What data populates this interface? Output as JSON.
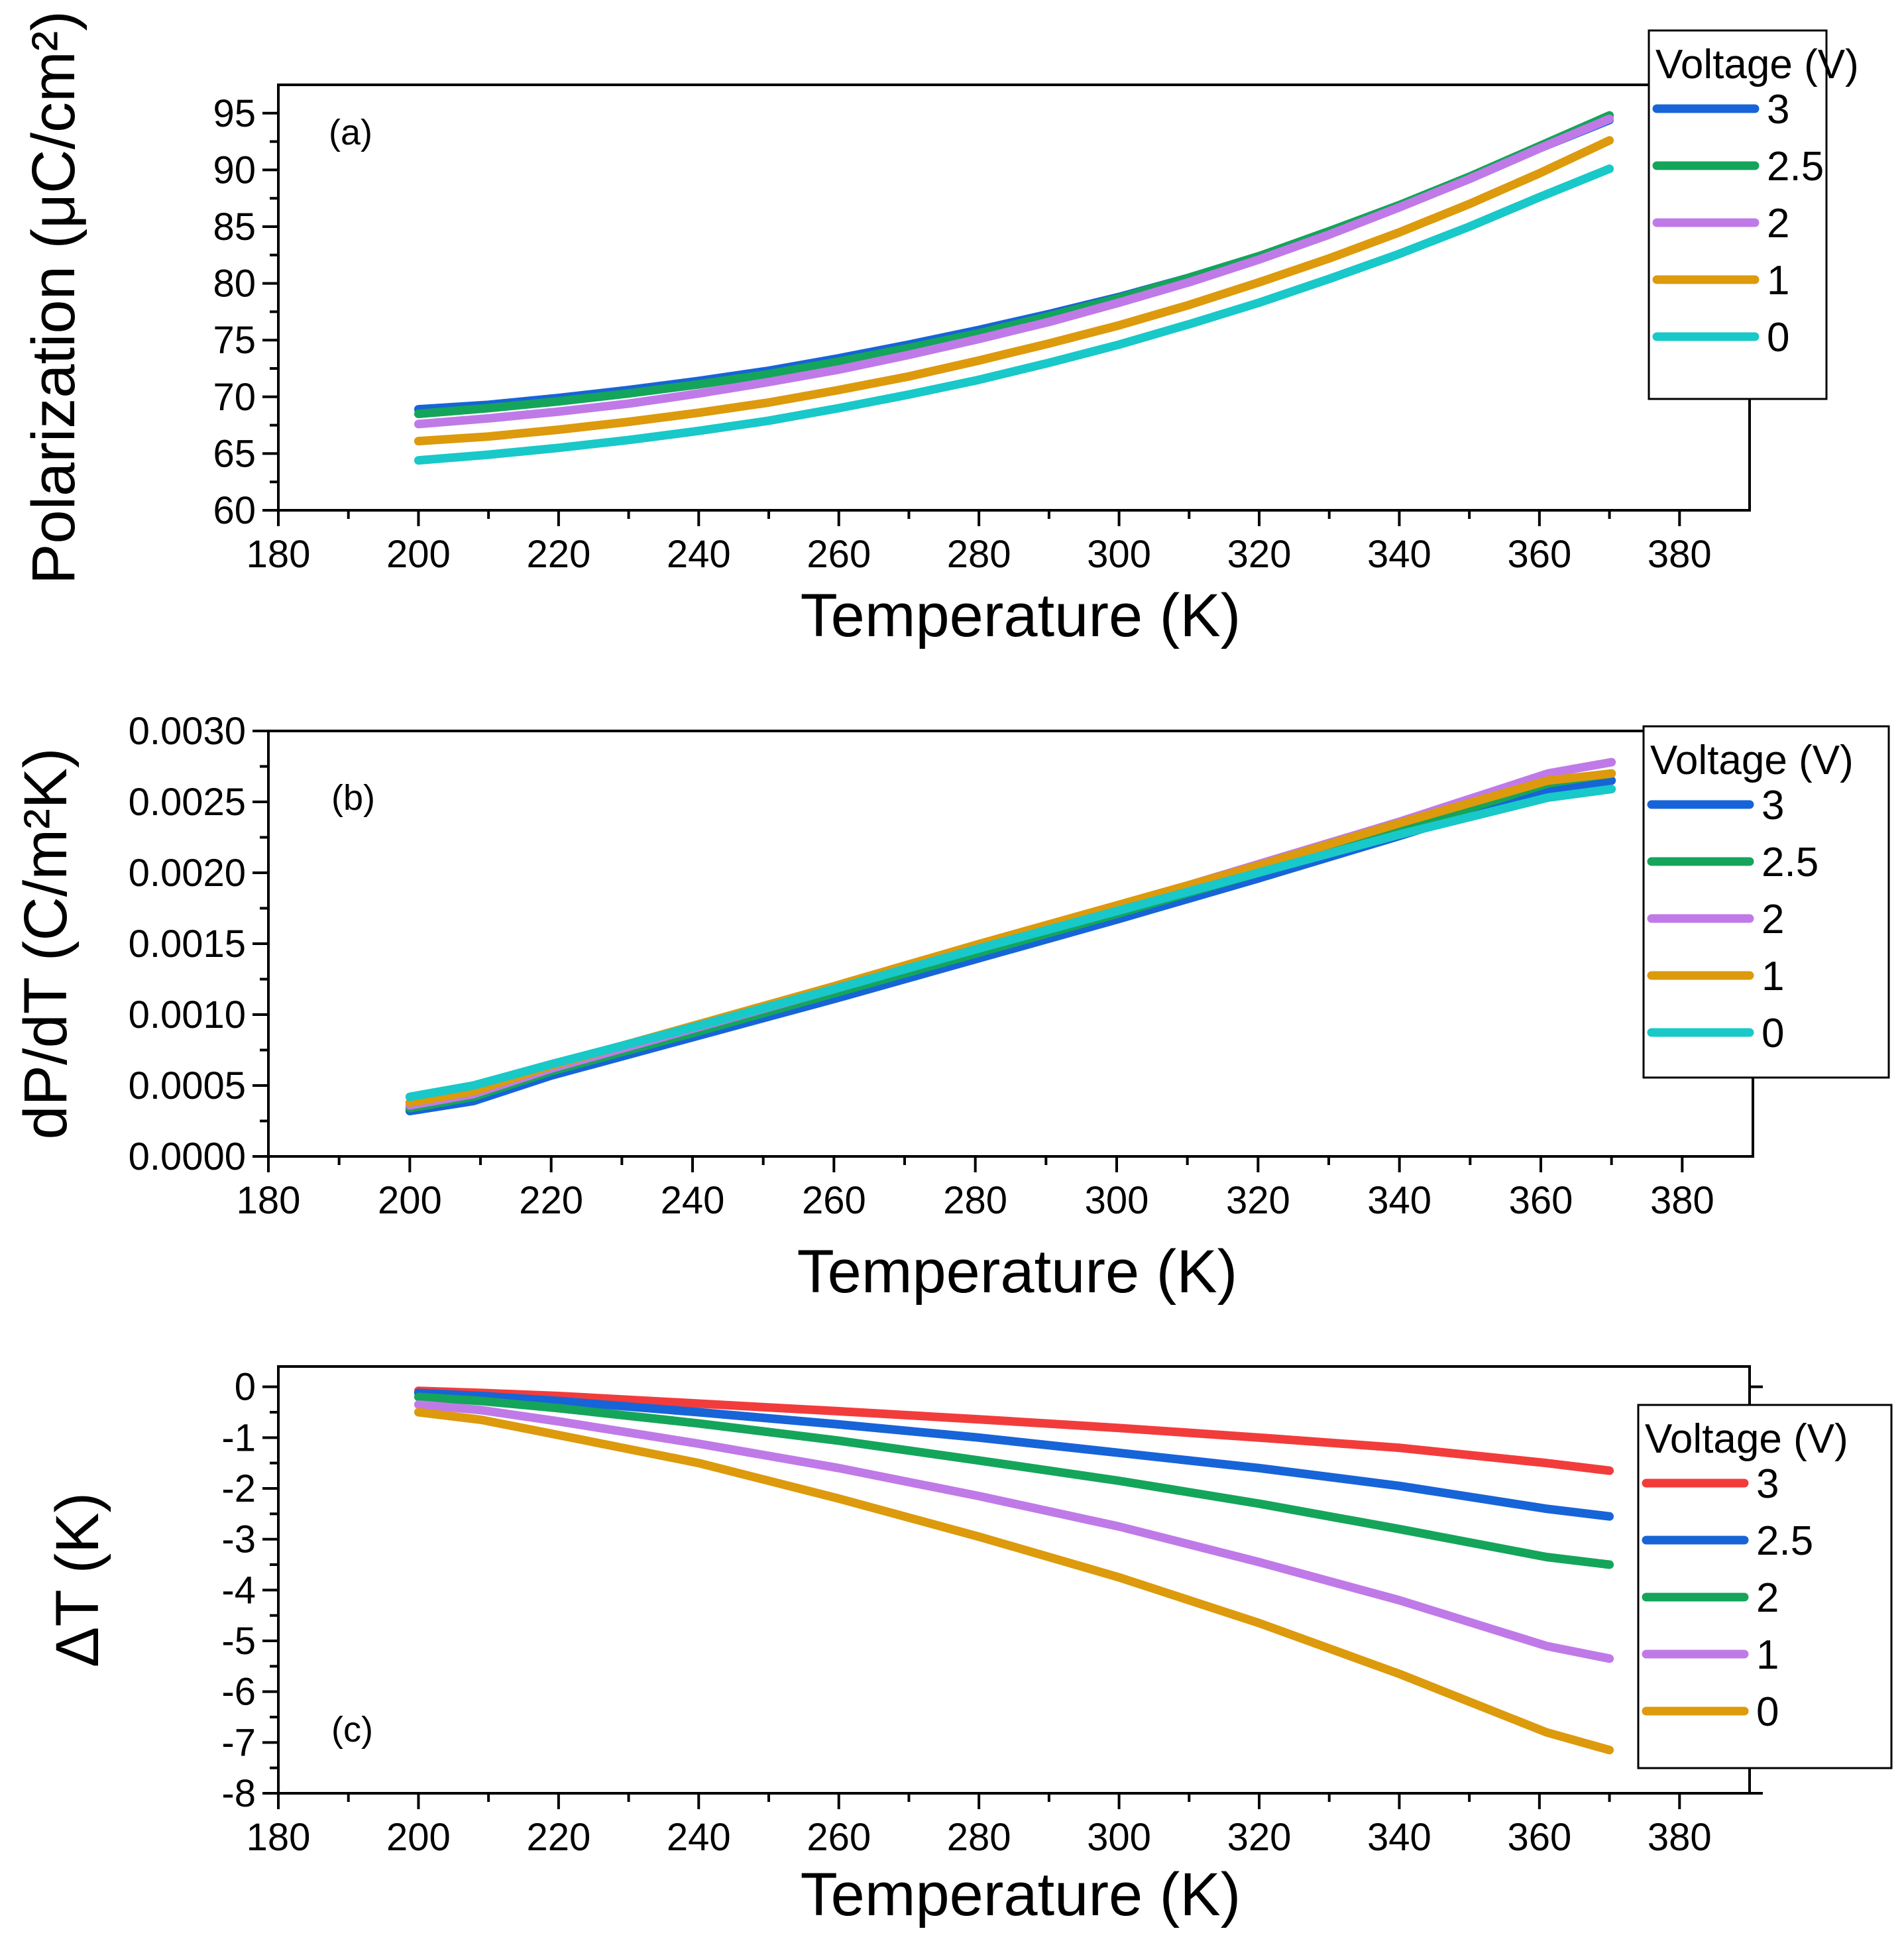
{
  "chart_data": [
    {
      "type": "line",
      "panel_label": "(a)",
      "xlabel": "Temperature (K)",
      "ylabel": "Polarization (μC/cm²)",
      "xlim": [
        180,
        390
      ],
      "ylim": [
        60,
        97.5
      ],
      "xticks": [
        180,
        200,
        220,
        240,
        260,
        280,
        300,
        320,
        340,
        360,
        380
      ],
      "xtick_labels": [
        "180",
        "200",
        "220",
        "240",
        "260",
        "280",
        "300",
        "320",
        "340",
        "360",
        "380"
      ],
      "yticks": [
        60,
        65,
        70,
        75,
        80,
        85,
        90,
        95
      ],
      "ytick_labels": [
        "60",
        "65",
        "70",
        "75",
        "80",
        "85",
        "90",
        "95"
      ],
      "legend": {
        "title": "Voltage (V)",
        "placement": "outside-top-right"
      },
      "x": [
        200,
        210,
        220,
        230,
        240,
        250,
        260,
        270,
        280,
        290,
        300,
        310,
        320,
        330,
        340,
        350,
        360,
        370
      ],
      "series": [
        {
          "name": "3",
          "color": "#1764d8",
          "values": [
            68.9,
            69.3,
            69.9,
            70.6,
            71.4,
            72.3,
            73.4,
            74.6,
            75.9,
            77.3,
            78.8,
            80.5,
            82.4,
            84.5,
            86.8,
            89.2,
            91.9,
            94.4
          ]
        },
        {
          "name": "2.5",
          "color": "#14a55a",
          "values": [
            68.5,
            69.0,
            69.6,
            70.3,
            71.1,
            72.0,
            73.1,
            74.3,
            75.6,
            77.1,
            78.7,
            80.5,
            82.4,
            84.6,
            86.9,
            89.4,
            92.1,
            94.8
          ]
        },
        {
          "name": "2",
          "color": "#c07ae8",
          "values": [
            67.6,
            68.1,
            68.7,
            69.4,
            70.3,
            71.3,
            72.4,
            73.7,
            75.1,
            76.6,
            78.3,
            80.1,
            82.1,
            84.3,
            86.7,
            89.2,
            91.9,
            94.5
          ]
        },
        {
          "name": "1",
          "color": "#dc9a0c",
          "values": [
            66.1,
            66.5,
            67.1,
            67.8,
            68.6,
            69.5,
            70.6,
            71.8,
            73.2,
            74.7,
            76.3,
            78.1,
            80.1,
            82.2,
            84.5,
            87.0,
            89.7,
            92.6
          ]
        },
        {
          "name": "0",
          "color": "#19c8c8",
          "values": [
            64.4,
            64.9,
            65.5,
            66.2,
            67.0,
            67.9,
            69.0,
            70.2,
            71.5,
            73.0,
            74.6,
            76.4,
            78.3,
            80.4,
            82.6,
            85.0,
            87.6,
            90.1
          ]
        }
      ]
    },
    {
      "type": "line",
      "panel_label": "(b)",
      "xlabel": "Temperature (K)",
      "ylabel": "dP/dT (C/m²K)",
      "xlim": [
        180,
        390
      ],
      "ylim": [
        0,
        0.003
      ],
      "xticks": [
        180,
        200,
        220,
        240,
        260,
        280,
        300,
        320,
        340,
        360,
        380
      ],
      "xtick_labels": [
        "180",
        "200",
        "220",
        "240",
        "260",
        "280",
        "300",
        "320",
        "340",
        "360",
        "380"
      ],
      "yticks": [
        0,
        0.0005,
        0.001,
        0.0015,
        0.002,
        0.0025,
        0.003
      ],
      "ytick_labels": [
        "0.0000",
        "0.0005",
        "0.0010",
        "0.0015",
        "0.0020",
        "0.0025",
        "0.0030"
      ],
      "legend": {
        "title": "Voltage (V)",
        "placement": "outside-top-right"
      },
      "x": [
        200,
        209,
        220,
        240,
        260,
        280,
        300,
        320,
        340,
        361,
        370
      ],
      "series": [
        {
          "name": "3",
          "color": "#1764d8",
          "values": [
            0.00032,
            0.00039,
            0.00057,
            0.00084,
            0.00111,
            0.00139,
            0.00167,
            0.00196,
            0.00226,
            0.00259,
            0.00265
          ]
        },
        {
          "name": "2.5",
          "color": "#14a55a",
          "values": [
            0.00034,
            0.00042,
            0.0006,
            0.00087,
            0.00115,
            0.00143,
            0.00171,
            0.002,
            0.0023,
            0.00263,
            0.0027
          ]
        },
        {
          "name": "2",
          "color": "#c07ae8",
          "values": [
            0.00036,
            0.00044,
            0.00062,
            0.0009,
            0.00118,
            0.00147,
            0.00176,
            0.00206,
            0.00236,
            0.0027,
            0.00278
          ]
        },
        {
          "name": "1",
          "color": "#dc9a0c",
          "values": [
            0.00038,
            0.00046,
            0.00064,
            0.00092,
            0.0012,
            0.00149,
            0.00177,
            0.00205,
            0.00235,
            0.00265,
            0.0027
          ]
        },
        {
          "name": "0",
          "color": "#19c8c8",
          "values": [
            0.00042,
            0.0005,
            0.00065,
            0.00091,
            0.00118,
            0.00146,
            0.00173,
            0.002,
            0.00227,
            0.00253,
            0.00259
          ]
        }
      ]
    },
    {
      "type": "line",
      "panel_label": "(c)",
      "xlabel": "Temperature (K)",
      "ylabel": "ΔT (K)",
      "xlim": [
        180,
        390
      ],
      "ylim": [
        -8,
        0.4
      ],
      "xticks": [
        180,
        200,
        220,
        240,
        260,
        280,
        300,
        320,
        340,
        360,
        380
      ],
      "xtick_labels": [
        "180",
        "200",
        "220",
        "240",
        "260",
        "280",
        "300",
        "320",
        "340",
        "360",
        "380"
      ],
      "yticks": [
        -8,
        -7,
        -6,
        -5,
        -4,
        -3,
        -2,
        -1,
        0
      ],
      "ytick_labels": [
        "-8",
        "-7",
        "-6",
        "-5",
        "-4",
        "-3",
        "-2",
        "-1",
        "0"
      ],
      "legend": {
        "title": "Voltage (V)",
        "placement": "right"
      },
      "x": [
        200,
        209,
        220,
        240,
        260,
        280,
        300,
        320,
        340,
        361,
        370
      ],
      "series": [
        {
          "name": "3",
          "color": "#f23c3c",
          "values": [
            -0.08,
            -0.12,
            -0.18,
            -0.33,
            -0.48,
            -0.64,
            -0.81,
            -1.0,
            -1.2,
            -1.5,
            -1.65
          ]
        },
        {
          "name": "2.5",
          "color": "#1764d8",
          "values": [
            -0.12,
            -0.18,
            -0.28,
            -0.5,
            -0.74,
            -1.0,
            -1.3,
            -1.6,
            -1.95,
            -2.4,
            -2.55
          ]
        },
        {
          "name": "2",
          "color": "#14a55a",
          "values": [
            -0.2,
            -0.28,
            -0.42,
            -0.72,
            -1.06,
            -1.45,
            -1.85,
            -2.3,
            -2.8,
            -3.35,
            -3.5
          ]
        },
        {
          "name": "1",
          "color": "#c07ae8",
          "values": [
            -0.35,
            -0.46,
            -0.68,
            -1.12,
            -1.6,
            -2.15,
            -2.75,
            -3.45,
            -4.2,
            -5.1,
            -5.35
          ]
        },
        {
          "name": "0",
          "color": "#dc9a0c",
          "values": [
            -0.5,
            -0.65,
            -0.95,
            -1.5,
            -2.2,
            -2.95,
            -3.75,
            -4.65,
            -5.65,
            -6.8,
            -7.15
          ]
        }
      ]
    }
  ]
}
